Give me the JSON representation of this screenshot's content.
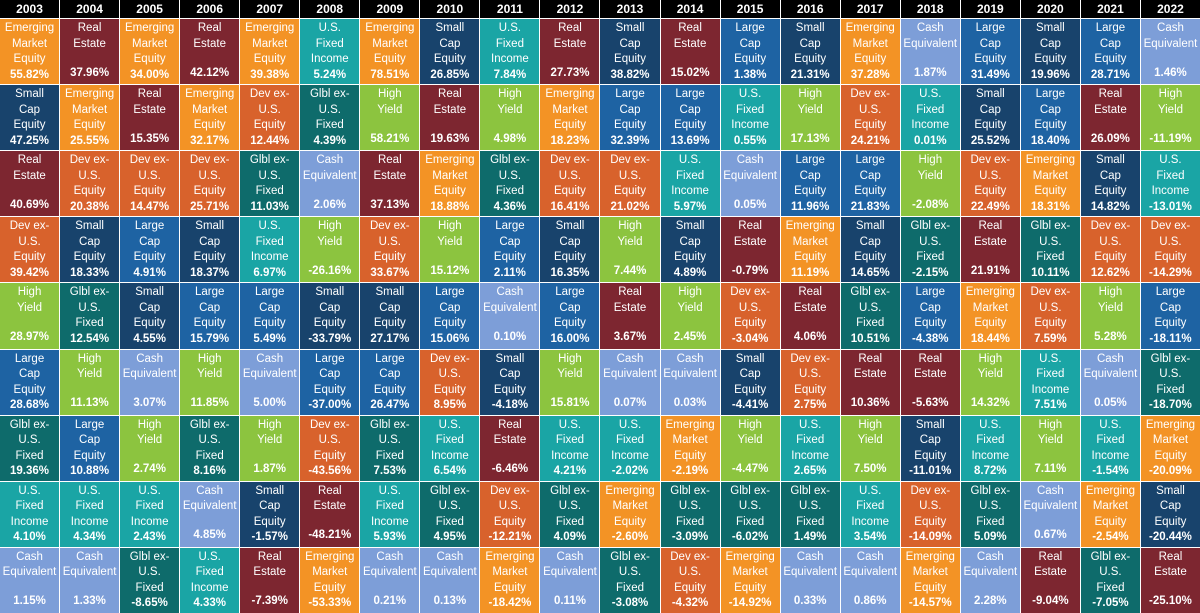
{
  "colors": {
    "Emerging Market Equity": "#f39325",
    "Real Estate": "#7d2630",
    "Small Cap Equity": "#18436c",
    "Dev ex-U.S. Equity": "#d8622c",
    "High Yield": "#8cc43f",
    "Large Cap Equity": "#1e63a3",
    "Glbl ex-U.S. Fixed": "#0e6b6b",
    "U.S. Fixed Income": "#1aa5a5",
    "Cash Equivalent": "#7d9ed8"
  },
  "columns": [
    {
      "year": "2003",
      "cells": [
        {
          "asset": "Emerging Market Equity",
          "return": "55.82%"
        },
        {
          "asset": "Small Cap Equity",
          "return": "47.25%"
        },
        {
          "asset": "Real Estate",
          "return": "40.69%"
        },
        {
          "asset": "Dev ex-U.S. Equity",
          "return": "39.42%"
        },
        {
          "asset": "High Yield",
          "return": "28.97%"
        },
        {
          "asset": "Large Cap Equity",
          "return": "28.68%"
        },
        {
          "asset": "Glbl ex-U.S. Fixed",
          "return": "19.36%"
        },
        {
          "asset": "U.S. Fixed Income",
          "return": "4.10%"
        },
        {
          "asset": "Cash Equivalent",
          "return": "1.15%"
        }
      ]
    },
    {
      "year": "2004",
      "cells": [
        {
          "asset": "Real Estate",
          "return": "37.96%"
        },
        {
          "asset": "Emerging Market Equity",
          "return": "25.55%"
        },
        {
          "asset": "Dev ex-U.S. Equity",
          "return": "20.38%"
        },
        {
          "asset": "Small Cap Equity",
          "return": "18.33%"
        },
        {
          "asset": "Glbl ex-U.S. Fixed",
          "return": "12.54%"
        },
        {
          "asset": "High Yield",
          "return": "11.13%"
        },
        {
          "asset": "Large Cap Equity",
          "return": "10.88%"
        },
        {
          "asset": "U.S. Fixed Income",
          "return": "4.34%"
        },
        {
          "asset": "Cash Equivalent",
          "return": "1.33%"
        }
      ]
    },
    {
      "year": "2005",
      "cells": [
        {
          "asset": "Emerging Market Equity",
          "return": "34.00%"
        },
        {
          "asset": "Real Estate",
          "return": "15.35%"
        },
        {
          "asset": "Dev ex-U.S. Equity",
          "return": "14.47%"
        },
        {
          "asset": "Large Cap Equity",
          "return": "4.91%"
        },
        {
          "asset": "Small Cap Equity",
          "return": "4.55%"
        },
        {
          "asset": "Cash Equivalent",
          "return": "3.07%"
        },
        {
          "asset": "High Yield",
          "return": "2.74%"
        },
        {
          "asset": "U.S. Fixed Income",
          "return": "2.43%"
        },
        {
          "asset": "Glbl ex-U.S. Fixed",
          "return": "-8.65%"
        }
      ]
    },
    {
      "year": "2006",
      "cells": [
        {
          "asset": "Real Estate",
          "return": "42.12%"
        },
        {
          "asset": "Emerging Market Equity",
          "return": "32.17%"
        },
        {
          "asset": "Dev ex-U.S. Equity",
          "return": "25.71%"
        },
        {
          "asset": "Small Cap Equity",
          "return": "18.37%"
        },
        {
          "asset": "Large Cap Equity",
          "return": "15.79%"
        },
        {
          "asset": "High Yield",
          "return": "11.85%"
        },
        {
          "asset": "Glbl ex-U.S. Fixed",
          "return": "8.16%"
        },
        {
          "asset": "Cash Equivalent",
          "return": "4.85%"
        },
        {
          "asset": "U.S. Fixed Income",
          "return": "4.33%"
        }
      ]
    },
    {
      "year": "2007",
      "cells": [
        {
          "asset": "Emerging Market Equity",
          "return": "39.38%"
        },
        {
          "asset": "Dev ex-U.S. Equity",
          "return": "12.44%"
        },
        {
          "asset": "Glbl ex-U.S. Fixed",
          "return": "11.03%"
        },
        {
          "asset": "U.S. Fixed Income",
          "return": "6.97%"
        },
        {
          "asset": "Large Cap Equity",
          "return": "5.49%"
        },
        {
          "asset": "Cash Equivalent",
          "return": "5.00%"
        },
        {
          "asset": "High Yield",
          "return": "1.87%"
        },
        {
          "asset": "Small Cap Equity",
          "return": "-1.57%"
        },
        {
          "asset": "Real Estate",
          "return": "-7.39%"
        }
      ]
    },
    {
      "year": "2008",
      "cells": [
        {
          "asset": "U.S. Fixed Income",
          "return": "5.24%"
        },
        {
          "asset": "Glbl ex-U.S. Fixed",
          "return": "4.39%"
        },
        {
          "asset": "Cash Equivalent",
          "return": "2.06%"
        },
        {
          "asset": "High Yield",
          "return": "-26.16%"
        },
        {
          "asset": "Small Cap Equity",
          "return": "-33.79%"
        },
        {
          "asset": "Large Cap Equity",
          "return": "-37.00%"
        },
        {
          "asset": "Dev ex-U.S. Equity",
          "return": "-43.56%"
        },
        {
          "asset": "Real Estate",
          "return": "-48.21%"
        },
        {
          "asset": "Emerging Market Equity",
          "return": "-53.33%"
        }
      ]
    },
    {
      "year": "2009",
      "cells": [
        {
          "asset": "Emerging Market Equity",
          "return": "78.51%"
        },
        {
          "asset": "High Yield",
          "return": "58.21%"
        },
        {
          "asset": "Real Estate",
          "return": "37.13%"
        },
        {
          "asset": "Dev ex-U.S. Equity",
          "return": "33.67%"
        },
        {
          "asset": "Small Cap Equity",
          "return": "27.17%"
        },
        {
          "asset": "Large Cap Equity",
          "return": "26.47%"
        },
        {
          "asset": "Glbl ex-U.S. Fixed",
          "return": "7.53%"
        },
        {
          "asset": "U.S. Fixed Income",
          "return": "5.93%"
        },
        {
          "asset": "Cash Equivalent",
          "return": "0.21%"
        }
      ]
    },
    {
      "year": "2010",
      "cells": [
        {
          "asset": "Small Cap Equity",
          "return": "26.85%"
        },
        {
          "asset": "Real Estate",
          "return": "19.63%"
        },
        {
          "asset": "Emerging Market Equity",
          "return": "18.88%"
        },
        {
          "asset": "High Yield",
          "return": "15.12%"
        },
        {
          "asset": "Large Cap Equity",
          "return": "15.06%"
        },
        {
          "asset": "Dev ex-U.S. Equity",
          "return": "8.95%"
        },
        {
          "asset": "U.S. Fixed Income",
          "return": "6.54%"
        },
        {
          "asset": "Glbl ex-U.S. Fixed",
          "return": "4.95%"
        },
        {
          "asset": "Cash Equivalent",
          "return": "0.13%"
        }
      ]
    },
    {
      "year": "2011",
      "cells": [
        {
          "asset": "U.S. Fixed Income",
          "return": "7.84%"
        },
        {
          "asset": "High Yield",
          "return": "4.98%"
        },
        {
          "asset": "Glbl ex-U.S. Fixed",
          "return": "4.36%"
        },
        {
          "asset": "Large Cap Equity",
          "return": "2.11%"
        },
        {
          "asset": "Cash Equivalent",
          "return": "0.10%"
        },
        {
          "asset": "Small Cap Equity",
          "return": "-4.18%"
        },
        {
          "asset": "Real Estate",
          "return": "-6.46%"
        },
        {
          "asset": "Dev ex-U.S. Equity",
          "return": "-12.21%"
        },
        {
          "asset": "Emerging Market Equity",
          "return": "-18.42%"
        }
      ]
    },
    {
      "year": "2012",
      "cells": [
        {
          "asset": "Real Estate",
          "return": "27.73%"
        },
        {
          "asset": "Emerging Market Equity",
          "return": "18.23%"
        },
        {
          "asset": "Dev ex-U.S. Equity",
          "return": "16.41%"
        },
        {
          "asset": "Small Cap Equity",
          "return": "16.35%"
        },
        {
          "asset": "Large Cap Equity",
          "return": "16.00%"
        },
        {
          "asset": "High Yield",
          "return": "15.81%"
        },
        {
          "asset": "U.S. Fixed Income",
          "return": "4.21%"
        },
        {
          "asset": "Glbl ex-U.S. Fixed",
          "return": "4.09%"
        },
        {
          "asset": "Cash Equivalent",
          "return": "0.11%"
        }
      ]
    },
    {
      "year": "2013",
      "cells": [
        {
          "asset": "Small Cap Equity",
          "return": "38.82%"
        },
        {
          "asset": "Large Cap Equity",
          "return": "32.39%"
        },
        {
          "asset": "Dev ex-U.S. Equity",
          "return": "21.02%"
        },
        {
          "asset": "High Yield",
          "return": "7.44%"
        },
        {
          "asset": "Real Estate",
          "return": "3.67%"
        },
        {
          "asset": "Cash Equivalent",
          "return": "0.07%"
        },
        {
          "asset": "U.S. Fixed Income",
          "return": "-2.02%"
        },
        {
          "asset": "Emerging Market Equity",
          "return": "-2.60%"
        },
        {
          "asset": "Glbl ex-U.S. Fixed",
          "return": "-3.08%"
        }
      ]
    },
    {
      "year": "2014",
      "cells": [
        {
          "asset": "Real Estate",
          "return": "15.02%"
        },
        {
          "asset": "Large Cap Equity",
          "return": "13.69%"
        },
        {
          "asset": "U.S. Fixed Income",
          "return": "5.97%"
        },
        {
          "asset": "Small Cap Equity",
          "return": "4.89%"
        },
        {
          "asset": "High Yield",
          "return": "2.45%"
        },
        {
          "asset": "Cash Equivalent",
          "return": "0.03%"
        },
        {
          "asset": "Emerging Market Equity",
          "return": "-2.19%"
        },
        {
          "asset": "Glbl ex-U.S. Fixed",
          "return": "-3.09%"
        },
        {
          "asset": "Dev ex-U.S. Equity",
          "return": "-4.32%"
        }
      ]
    },
    {
      "year": "2015",
      "cells": [
        {
          "asset": "Large Cap Equity",
          "return": "1.38%"
        },
        {
          "asset": "U.S. Fixed Income",
          "return": "0.55%"
        },
        {
          "asset": "Cash Equivalent",
          "return": "0.05%"
        },
        {
          "asset": "Real Estate",
          "return": "-0.79%"
        },
        {
          "asset": "Dev ex-U.S. Equity",
          "return": "-3.04%"
        },
        {
          "asset": "Small Cap Equity",
          "return": "-4.41%"
        },
        {
          "asset": "High Yield",
          "return": "-4.47%"
        },
        {
          "asset": "Glbl ex-U.S. Fixed",
          "return": "-6.02%"
        },
        {
          "asset": "Emerging Market Equity",
          "return": "-14.92%"
        }
      ]
    },
    {
      "year": "2016",
      "cells": [
        {
          "asset": "Small Cap Equity",
          "return": "21.31%"
        },
        {
          "asset": "High Yield",
          "return": "17.13%"
        },
        {
          "asset": "Large Cap Equity",
          "return": "11.96%"
        },
        {
          "asset": "Emerging Market Equity",
          "return": "11.19%"
        },
        {
          "asset": "Real Estate",
          "return": "4.06%"
        },
        {
          "asset": "Dev ex-U.S. Equity",
          "return": "2.75%"
        },
        {
          "asset": "U.S. Fixed Income",
          "return": "2.65%"
        },
        {
          "asset": "Glbl ex-U.S. Fixed",
          "return": "1.49%"
        },
        {
          "asset": "Cash Equivalent",
          "return": "0.33%"
        }
      ]
    },
    {
      "year": "2017",
      "cells": [
        {
          "asset": "Emerging Market Equity",
          "return": "37.28%"
        },
        {
          "asset": "Dev ex-U.S. Equity",
          "return": "24.21%"
        },
        {
          "asset": "Large Cap Equity",
          "return": "21.83%"
        },
        {
          "asset": "Small Cap Equity",
          "return": "14.65%"
        },
        {
          "asset": "Glbl ex-U.S. Fixed",
          "return": "10.51%"
        },
        {
          "asset": "Real Estate",
          "return": "10.36%"
        },
        {
          "asset": "High Yield",
          "return": "7.50%"
        },
        {
          "asset": "U.S. Fixed Income",
          "return": "3.54%"
        },
        {
          "asset": "Cash Equivalent",
          "return": "0.86%"
        }
      ]
    },
    {
      "year": "2018",
      "cells": [
        {
          "asset": "Cash Equivalent",
          "return": "1.87%"
        },
        {
          "asset": "U.S. Fixed Income",
          "return": "0.01%"
        },
        {
          "asset": "High Yield",
          "return": "-2.08%"
        },
        {
          "asset": "Glbl ex-U.S. Fixed",
          "return": "-2.15%"
        },
        {
          "asset": "Large Cap Equity",
          "return": "-4.38%"
        },
        {
          "asset": "Real Estate",
          "return": "-5.63%"
        },
        {
          "asset": "Small Cap Equity",
          "return": "-11.01%"
        },
        {
          "asset": "Dev ex-U.S. Equity",
          "return": "-14.09%"
        },
        {
          "asset": "Emerging Market Equity",
          "return": "-14.57%"
        }
      ]
    },
    {
      "year": "2019",
      "cells": [
        {
          "asset": "Large Cap Equity",
          "return": "31.49%"
        },
        {
          "asset": "Small Cap Equity",
          "return": "25.52%"
        },
        {
          "asset": "Dev ex-U.S. Equity",
          "return": "22.49%"
        },
        {
          "asset": "Real Estate",
          "return": "21.91%"
        },
        {
          "asset": "Emerging Market Equity",
          "return": "18.44%"
        },
        {
          "asset": "High Yield",
          "return": "14.32%"
        },
        {
          "asset": "U.S. Fixed Income",
          "return": "8.72%"
        },
        {
          "asset": "Glbl ex-U.S. Fixed",
          "return": "5.09%"
        },
        {
          "asset": "Cash Equivalent",
          "return": "2.28%"
        }
      ]
    },
    {
      "year": "2020",
      "cells": [
        {
          "asset": "Small Cap Equity",
          "return": "19.96%"
        },
        {
          "asset": "Large Cap Equity",
          "return": "18.40%"
        },
        {
          "asset": "Emerging Market Equity",
          "return": "18.31%"
        },
        {
          "asset": "Glbl ex-U.S. Fixed",
          "return": "10.11%"
        },
        {
          "asset": "Dev ex-U.S. Equity",
          "return": "7.59%"
        },
        {
          "asset": "U.S. Fixed Income",
          "return": "7.51%"
        },
        {
          "asset": "High Yield",
          "return": "7.11%"
        },
        {
          "asset": "Cash Equivalent",
          "return": "0.67%"
        },
        {
          "asset": "Real Estate",
          "return": "-9.04%"
        }
      ]
    },
    {
      "year": "2021",
      "cells": [
        {
          "asset": "Large Cap Equity",
          "return": "28.71%"
        },
        {
          "asset": "Real Estate",
          "return": "26.09%"
        },
        {
          "asset": "Small Cap Equity",
          "return": "14.82%"
        },
        {
          "asset": "Dev ex-U.S. Equity",
          "return": "12.62%"
        },
        {
          "asset": "High Yield",
          "return": "5.28%"
        },
        {
          "asset": "Cash Equivalent",
          "return": "0.05%"
        },
        {
          "asset": "U.S. Fixed Income",
          "return": "-1.54%"
        },
        {
          "asset": "Emerging Market Equity",
          "return": "-2.54%"
        },
        {
          "asset": "Glbl ex-U.S. Fixed",
          "return": "-7.05%"
        }
      ]
    },
    {
      "year": "2022",
      "cells": [
        {
          "asset": "Cash Equivalent",
          "return": "1.46%"
        },
        {
          "asset": "High Yield",
          "return": "-11.19%"
        },
        {
          "asset": "U.S. Fixed Income",
          "return": "-13.01%"
        },
        {
          "asset": "Dev ex-U.S. Equity",
          "return": "-14.29%"
        },
        {
          "asset": "Large Cap Equity",
          "return": "-18.11%"
        },
        {
          "asset": "Glbl ex-U.S. Fixed",
          "return": "-18.70%"
        },
        {
          "asset": "Emerging Market Equity",
          "return": "-20.09%"
        },
        {
          "asset": "Small Cap Equity",
          "return": "-20.44%"
        },
        {
          "asset": "Real Estate",
          "return": "-25.10%"
        }
      ]
    }
  ]
}
